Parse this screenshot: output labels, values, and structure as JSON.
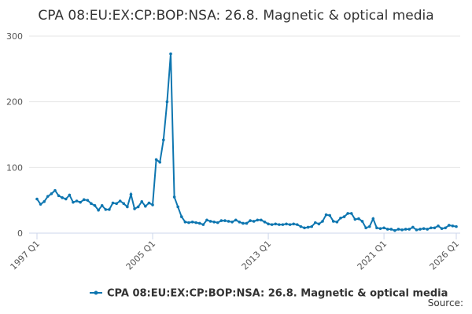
{
  "chart_data": {
    "type": "line",
    "title": "CPA 08:EU:EX:CP:BOP:NSA: 26.8. Magnetic & optical media",
    "source": "Source:",
    "categories": [
      "1997 Q1",
      null,
      null,
      null,
      null,
      null,
      null,
      null,
      null,
      null,
      null,
      null,
      null,
      null,
      null,
      null,
      null,
      null,
      null,
      null,
      null,
      null,
      null,
      null,
      null,
      null,
      null,
      null,
      null,
      null,
      null,
      null,
      "2005 Q1",
      null,
      null,
      null,
      null,
      null,
      null,
      null,
      null,
      null,
      null,
      null,
      null,
      null,
      null,
      null,
      null,
      null,
      null,
      null,
      null,
      null,
      null,
      null,
      null,
      null,
      null,
      null,
      null,
      null,
      null,
      null,
      "2013 Q1",
      null,
      null,
      null,
      null,
      null,
      null,
      null,
      null,
      null,
      null,
      null,
      null,
      null,
      null,
      null,
      null,
      null,
      null,
      null,
      null,
      null,
      null,
      null,
      null,
      null,
      null,
      null,
      null,
      null,
      null,
      null,
      "2021 Q1",
      null,
      null,
      null,
      null,
      null,
      null,
      null,
      null,
      null,
      null,
      null,
      null,
      null,
      null,
      null,
      null,
      null,
      null,
      null,
      "2026 Q1"
    ],
    "series": [
      {
        "name": "CPA 08:EU:EX:CP:BOP:NSA: 26.8. Magnetic & optical media",
        "color": "#0e76b0",
        "values": [
          52,
          44,
          48,
          56,
          60,
          65,
          57,
          54,
          52,
          58,
          47,
          49,
          47,
          51,
          50,
          45,
          42,
          35,
          42,
          36,
          36,
          46,
          45,
          49,
          45,
          40,
          59,
          37,
          40,
          48,
          41,
          46,
          43,
          112,
          108,
          142,
          200,
          273,
          55,
          40,
          25,
          17,
          16,
          17,
          16,
          15,
          13,
          20,
          18,
          17,
          16,
          19,
          19,
          18,
          17,
          20,
          17,
          15,
          15,
          19,
          18,
          20,
          20,
          17,
          14,
          13,
          14,
          13,
          13,
          14,
          13,
          14,
          13,
          10,
          8,
          9,
          10,
          16,
          14,
          18,
          28,
          27,
          18,
          17,
          23,
          25,
          30,
          30,
          21,
          22,
          18,
          8,
          10,
          22,
          8,
          7,
          8,
          6,
          6,
          4,
          6,
          5,
          6,
          6,
          9,
          5,
          6,
          7,
          6,
          8,
          8,
          11,
          7,
          8,
          12,
          11,
          10
        ]
      }
    ],
    "ylim": [
      0,
      300
    ],
    "yticks": [
      0,
      100,
      200,
      300
    ],
    "grid": true,
    "legend": "bottom"
  }
}
